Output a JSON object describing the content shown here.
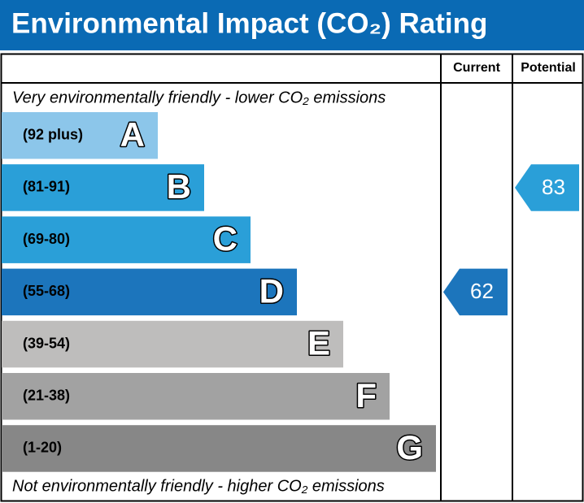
{
  "title": "Environmental Impact (CO₂) Rating",
  "columns": {
    "current": "Current",
    "potential": "Potential"
  },
  "top_note": "Very environmentally friendly - lower CO₂ emissions",
  "bottom_note": "Not environmentally friendly - higher CO₂ emissions",
  "bands": [
    {
      "range": "(92 plus)",
      "letter": "A",
      "color": "#8cc6ea"
    },
    {
      "range": "(81-91)",
      "letter": "B",
      "color": "#2a9fd8"
    },
    {
      "range": "(69-80)",
      "letter": "C",
      "color": "#2a9fd8"
    },
    {
      "range": "(55-68)",
      "letter": "D",
      "color": "#1c75bc"
    },
    {
      "range": "(39-54)",
      "letter": "E",
      "color": "#bebdbc"
    },
    {
      "range": "(21-38)",
      "letter": "F",
      "color": "#a2a2a2"
    },
    {
      "range": "(1-20)",
      "letter": "G",
      "color": "#878787"
    }
  ],
  "current": 62,
  "potential": 83
}
